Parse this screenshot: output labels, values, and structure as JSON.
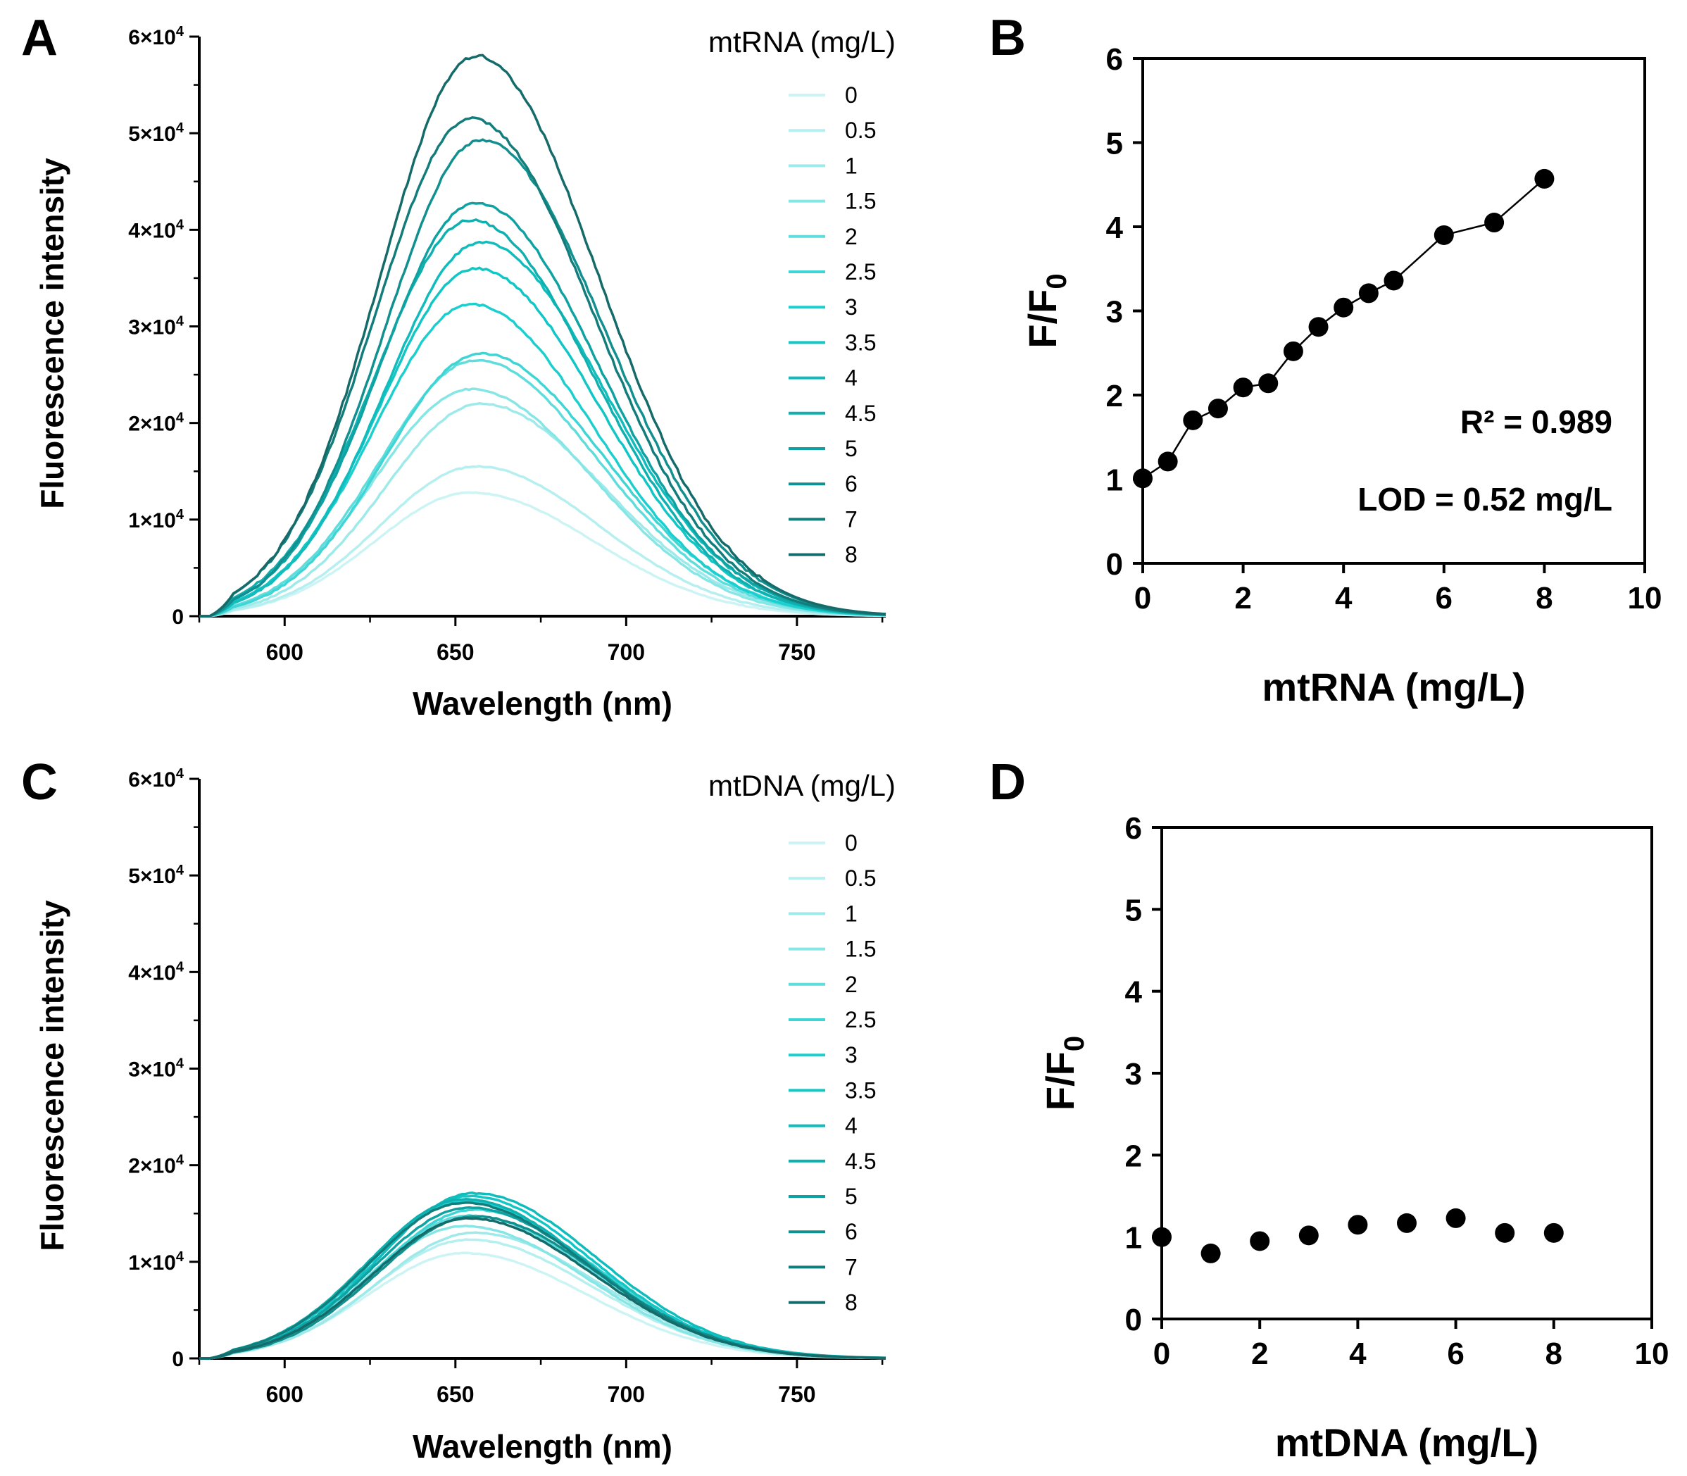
{
  "chart_data": [
    {
      "panel": "A",
      "type": "line",
      "xlabel": "Wavelength (nm)",
      "ylabel": "Fluorescence intensity",
      "xlim": [
        575,
        776
      ],
      "ylim": [
        0,
        60000
      ],
      "xticks": [
        "600",
        "650",
        "700",
        "750"
      ],
      "yticks": [
        {
          "value": 0,
          "base": "0",
          "exp": ""
        },
        {
          "value": 10000,
          "base": "1×10",
          "exp": "4"
        },
        {
          "value": 20000,
          "base": "2×10",
          "exp": "4"
        },
        {
          "value": 30000,
          "base": "3×10",
          "exp": "4"
        },
        {
          "value": 40000,
          "base": "4×10",
          "exp": "4"
        },
        {
          "value": 50000,
          "base": "5×10",
          "exp": "4"
        },
        {
          "value": 60000,
          "base": "6×10",
          "exp": "4"
        }
      ],
      "legend_title": "mtRNA (mg/L)",
      "legend_placement": "top-right",
      "peak_wavelength_nm": 656,
      "series": [
        {
          "name": "0",
          "peak": 12800,
          "color": "#cdf4f4"
        },
        {
          "name": "0.5",
          "peak": 15500,
          "color": "#b5efef"
        },
        {
          "name": "1",
          "peak": 22000,
          "color": "#9eeaea"
        },
        {
          "name": "1.5",
          "peak": 23500,
          "color": "#86e5e5"
        },
        {
          "name": "2",
          "peak": 26500,
          "color": "#5fdcdc"
        },
        {
          "name": "2.5",
          "peak": 27200,
          "color": "#3fd5d5"
        },
        {
          "name": "3",
          "peak": 32300,
          "color": "#1ccfcf"
        },
        {
          "name": "3.5",
          "peak": 36000,
          "color": "#12c6c6"
        },
        {
          "name": "4",
          "peak": 38700,
          "color": "#10bcbc"
        },
        {
          "name": "4.5",
          "peak": 41000,
          "color": "#0fb0b0"
        },
        {
          "name": "5",
          "peak": 42800,
          "color": "#0fa2a2"
        },
        {
          "name": "6",
          "peak": 49300,
          "color": "#11908f"
        },
        {
          "name": "7",
          "peak": 51500,
          "color": "#137d7c"
        },
        {
          "name": "8",
          "peak": 58000,
          "color": "#146b6a"
        }
      ]
    },
    {
      "panel": "B",
      "type": "scatter",
      "xlabel": "mtRNA (mg/L)",
      "ylabel_main": "F/F",
      "ylabel_sub": "0",
      "xlim": [
        0,
        10
      ],
      "ylim": [
        0,
        6
      ],
      "xticks": [
        0,
        2,
        4,
        6,
        8,
        10
      ],
      "yticks": [
        0,
        1,
        2,
        3,
        4,
        5,
        6
      ],
      "x": [
        0,
        0.5,
        1,
        1.5,
        2,
        2.5,
        3,
        3.5,
        4,
        4.5,
        5,
        6,
        7,
        8
      ],
      "y": [
        1.01,
        1.21,
        1.7,
        1.84,
        2.09,
        2.14,
        2.52,
        2.81,
        3.04,
        3.21,
        3.36,
        3.9,
        4.05,
        4.57
      ],
      "fit_line": true,
      "annotations": [
        "R² = 0.989",
        "LOD = 0.52 mg/L"
      ]
    },
    {
      "panel": "C",
      "type": "line",
      "xlabel": "Wavelength (nm)",
      "ylabel": "Fluorescence intensity",
      "xlim": [
        575,
        776
      ],
      "ylim": [
        0,
        60000
      ],
      "xticks": [
        "600",
        "650",
        "700",
        "750"
      ],
      "yticks": [
        {
          "value": 0,
          "base": "0",
          "exp": ""
        },
        {
          "value": 10000,
          "base": "1×10",
          "exp": "4"
        },
        {
          "value": 20000,
          "base": "2×10",
          "exp": "4"
        },
        {
          "value": 30000,
          "base": "3×10",
          "exp": "4"
        },
        {
          "value": 40000,
          "base": "4×10",
          "exp": "4"
        },
        {
          "value": 50000,
          "base": "5×10",
          "exp": "4"
        },
        {
          "value": 60000,
          "base": "6×10",
          "exp": "4"
        }
      ],
      "legend_title": "mtDNA (mg/L)",
      "legend_placement": "top-right",
      "peak_wavelength_nm": 654,
      "series": [
        {
          "name": "0",
          "peak": 10900,
          "color": "#cdf4f4"
        },
        {
          "name": "0.5",
          "peak": 12300,
          "color": "#b5efef"
        },
        {
          "name": "1",
          "peak": 13000,
          "color": "#9eeaea"
        },
        {
          "name": "1.5",
          "peak": 13700,
          "color": "#86e5e5"
        },
        {
          "name": "2",
          "peak": 14800,
          "color": "#5fdcdc"
        },
        {
          "name": "2.5",
          "peak": 15400,
          "color": "#3fd5d5"
        },
        {
          "name": "3",
          "peak": 16300,
          "color": "#1ccfcf"
        },
        {
          "name": "3.5",
          "peak": 16800,
          "color": "#12c6c6"
        },
        {
          "name": "4",
          "peak": 17100,
          "color": "#10bcbc"
        },
        {
          "name": "4.5",
          "peak": 16500,
          "color": "#0fb0b0"
        },
        {
          "name": "5",
          "peak": 15600,
          "color": "#0fa2a2"
        },
        {
          "name": "6",
          "peak": 14700,
          "color": "#11908f"
        },
        {
          "name": "7",
          "peak": 16100,
          "color": "#137d7c"
        },
        {
          "name": "8",
          "peak": 14500,
          "color": "#146b6a"
        }
      ]
    },
    {
      "panel": "D",
      "type": "scatter",
      "xlabel": "mtDNA (mg/L)",
      "ylabel_main": "F/F",
      "ylabel_sub": "0",
      "xlim": [
        0,
        10
      ],
      "ylim": [
        0,
        6
      ],
      "xticks": [
        0,
        2,
        4,
        6,
        8,
        10
      ],
      "yticks": [
        0,
        1,
        2,
        3,
        4,
        5,
        6
      ],
      "x": [
        0,
        1,
        2,
        3,
        4,
        5,
        6,
        7,
        8
      ],
      "y": [
        1.0,
        0.8,
        0.95,
        1.02,
        1.15,
        1.17,
        1.23,
        1.05,
        1.05
      ],
      "fit_line": false,
      "annotations": []
    }
  ]
}
